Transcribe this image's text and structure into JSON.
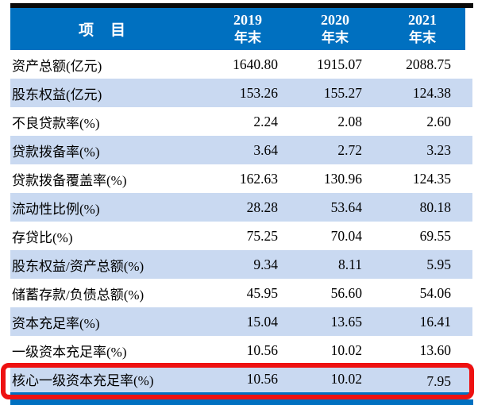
{
  "colors": {
    "header_bg": "#0070C0",
    "header_text": "#FFFFFF",
    "stripe_bg": "#C9D9F1",
    "bar_black": "#0A0A0A",
    "bottom_bar": "#0070C0",
    "highlight_border": "#EE1111",
    "body_text": "#000000"
  },
  "table": {
    "item_header": "项　目",
    "year_headers": [
      {
        "year": "2019",
        "suffix": "年末"
      },
      {
        "year": "2020",
        "suffix": "年末"
      },
      {
        "year": "2021",
        "suffix": "年末"
      }
    ],
    "rows": [
      {
        "label": "资产总额(亿元)",
        "values": [
          "1640.80",
          "1915.07",
          "2088.75"
        ],
        "striped": false,
        "highlighted": false
      },
      {
        "label": "股东权益(亿元)",
        "values": [
          "153.26",
          "155.27",
          "124.38"
        ],
        "striped": true,
        "highlighted": false
      },
      {
        "label": "不良贷款率(%)",
        "values": [
          "2.24",
          "2.08",
          "2.60"
        ],
        "striped": false,
        "highlighted": false
      },
      {
        "label": "贷款拨备率(%)",
        "values": [
          "3.64",
          "2.72",
          "3.23"
        ],
        "striped": true,
        "highlighted": false
      },
      {
        "label": "贷款拨备覆盖率(%)",
        "values": [
          "162.63",
          "130.96",
          "124.35"
        ],
        "striped": false,
        "highlighted": false
      },
      {
        "label": "流动性比例(%)",
        "values": [
          "28.28",
          "53.64",
          "80.18"
        ],
        "striped": true,
        "highlighted": false
      },
      {
        "label": "存贷比(%)",
        "values": [
          "75.25",
          "70.04",
          "69.55"
        ],
        "striped": false,
        "highlighted": false
      },
      {
        "label": "股东权益/资产总额(%)",
        "values": [
          "9.34",
          "8.11",
          "5.95"
        ],
        "striped": true,
        "highlighted": false
      },
      {
        "label": "储蓄存款/负债总额(%)",
        "values": [
          "45.95",
          "56.60",
          "54.06"
        ],
        "striped": false,
        "highlighted": false
      },
      {
        "label": "资本充足率(%)",
        "values": [
          "15.04",
          "13.65",
          "16.41"
        ],
        "striped": true,
        "highlighted": false
      },
      {
        "label": "一级资本充足率(%)",
        "values": [
          "10.56",
          "10.02",
          "13.60"
        ],
        "striped": false,
        "highlighted": false
      },
      {
        "label": "核心一级资本充足率(%)",
        "values": [
          "10.56",
          "10.02",
          "7.95"
        ],
        "striped": true,
        "highlighted": true
      }
    ]
  },
  "annotation": {
    "type": "highlight-box",
    "target_row": "核心一级资本充足率(%)"
  }
}
